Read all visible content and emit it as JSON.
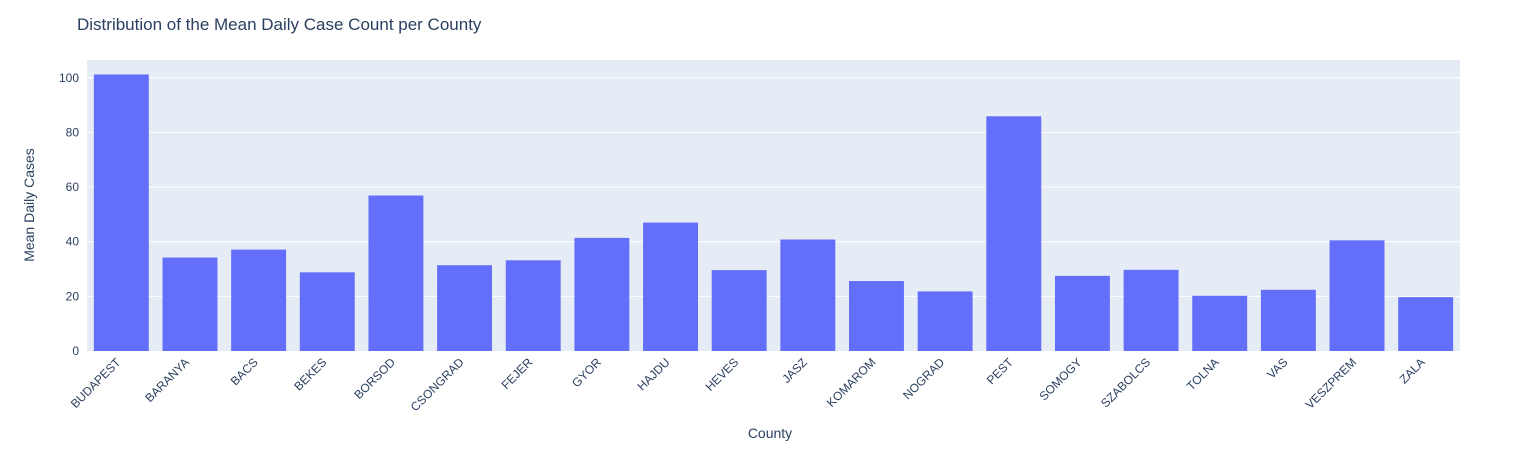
{
  "chart_data": {
    "type": "bar",
    "title": "Distribution of the Mean Daily Case Count per County",
    "xlabel": "County",
    "ylabel": "Mean Daily Cases",
    "categories": [
      "BUDAPEST",
      "BARANYA",
      "BACS",
      "BEKES",
      "BORSOD",
      "CSONGRAD",
      "FEJER",
      "GYOR",
      "HAJDU",
      "HEVES",
      "JASZ",
      "KOMAROM",
      "NOGRAD",
      "PEST",
      "SOMOGY",
      "SZABOLCS",
      "TOLNA",
      "VAS",
      "VESZPREM",
      "ZALA"
    ],
    "values": [
      101.2,
      34.2,
      37.1,
      28.8,
      56.9,
      31.4,
      33.2,
      41.4,
      47.0,
      29.6,
      40.8,
      25.6,
      21.8,
      85.9,
      27.5,
      29.7,
      20.2,
      22.4,
      40.5,
      19.7
    ],
    "yticks": [
      0,
      20,
      40,
      60,
      80,
      100
    ],
    "ylim": [
      0,
      106.5
    ],
    "grid": true,
    "colors": {
      "bar": "#636efa",
      "plot_bg": "#e5ecf6",
      "grid": "#ffffff",
      "text": "#2a3f5f"
    }
  }
}
